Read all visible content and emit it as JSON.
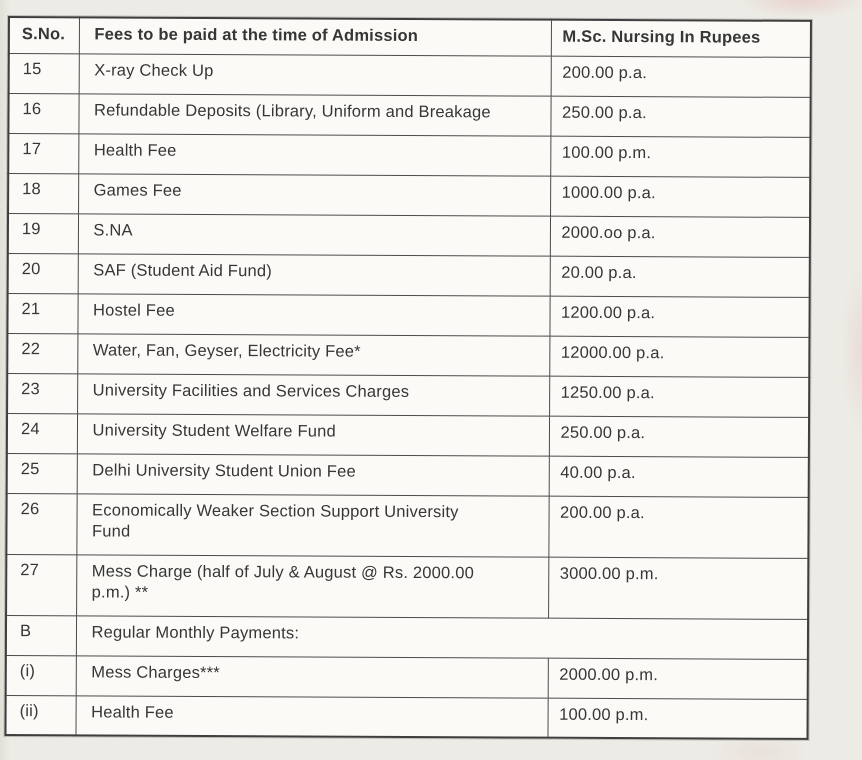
{
  "colors": {
    "paper": "#f1efe9",
    "ink": "#363636",
    "table_line": "#4b4b4b"
  },
  "table": {
    "headers": [
      "S.No.",
      "Fees to be paid at the time of Admission",
      "M.Sc. Nursing In Rupees"
    ],
    "rows": [
      {
        "sno": "15",
        "description": "X-ray Check Up",
        "amount": "200.00 p.a."
      },
      {
        "sno": "16",
        "description": "Refundable Deposits (Library, Uniform and Breakage",
        "amount": "250.00 p.a."
      },
      {
        "sno": "17",
        "description": "Health Fee",
        "amount": "100.00 p.m."
      },
      {
        "sno": "18",
        "description": "Games Fee",
        "amount": "1000.00 p.a."
      },
      {
        "sno": "19",
        "description": "S.NA",
        "amount": "2000.oo p.a."
      },
      {
        "sno": "20",
        "description": "SAF (Student Aid Fund)",
        "amount": "20.00 p.a."
      },
      {
        "sno": "21",
        "description": "Hostel Fee",
        "amount": "1200.00 p.a."
      },
      {
        "sno": "22",
        "description": "Water, Fan, Geyser, Electricity Fee*",
        "amount": "12000.00 p.a."
      },
      {
        "sno": "23",
        "description": "University Facilities and Services Charges",
        "amount": "1250.00 p.a."
      },
      {
        "sno": "24",
        "description": "University Student Welfare Fund",
        "amount": "250.00 p.a."
      },
      {
        "sno": "25",
        "description": "Delhi University Student Union Fee",
        "amount": "40.00 p.a."
      },
      {
        "sno": "26",
        "description": "Economically Weaker Section Support University\nFund",
        "amount": "200.00 p.a."
      },
      {
        "sno": "27",
        "description": "Mess Charge (half of July & August @ Rs. 2000.00\np.m.) **",
        "amount": "3000.00 p.m."
      },
      {
        "sno": "B",
        "description": "Regular Monthly Payments:",
        "span": true
      },
      {
        "sno": "(i)",
        "description": "Mess Charges***",
        "amount": "2000.00 p.m."
      },
      {
        "sno": "(ii)",
        "description": "Health Fee",
        "amount": "100.00 p.m."
      }
    ]
  }
}
